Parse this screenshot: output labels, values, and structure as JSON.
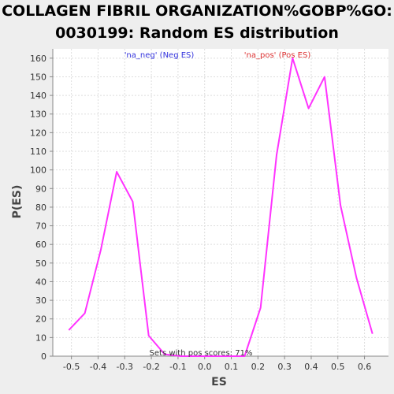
{
  "chart_data": {
    "type": "line",
    "title_line1": "COLLAGEN FIBRIL ORGANIZATION%GOBP%GO:",
    "title_line2": "0030199: Random ES distribution",
    "xlabel": "ES",
    "ylabel": "P(ES)",
    "xlim": [
      -0.57,
      0.69
    ],
    "ylim": [
      0,
      165
    ],
    "x_ticks": [
      "-0.5",
      "-0.4",
      "-0.3",
      "-0.2",
      "-0.1",
      "0.0",
      "0.1",
      "0.2",
      "0.3",
      "0.4",
      "0.5",
      "0.6"
    ],
    "y_ticks": [
      "0",
      "10",
      "20",
      "30",
      "40",
      "50",
      "60",
      "70",
      "80",
      "90",
      "100",
      "110",
      "120",
      "130",
      "140",
      "150",
      "160"
    ],
    "grid": true,
    "legend_neg": "'na_neg' (Neg ES)",
    "legend_pos": "'na_pos' (Pos ES)",
    "annotation": "Sets with pos scores: 71%",
    "line_color": "#ff33ff",
    "series": [
      {
        "x": [
          -0.51,
          -0.45,
          -0.39,
          -0.33,
          -0.27,
          -0.21,
          -0.15,
          -0.09,
          -0.03,
          0.03,
          0.09,
          0.15,
          0.21,
          0.27,
          0.33,
          0.39,
          0.45,
          0.51,
          0.57,
          0.63
        ],
        "values": [
          14,
          23,
          57,
          99,
          83,
          11,
          1,
          0,
          0,
          0,
          0,
          0,
          26,
          108,
          160,
          133,
          150,
          81,
          42,
          12
        ]
      }
    ]
  }
}
